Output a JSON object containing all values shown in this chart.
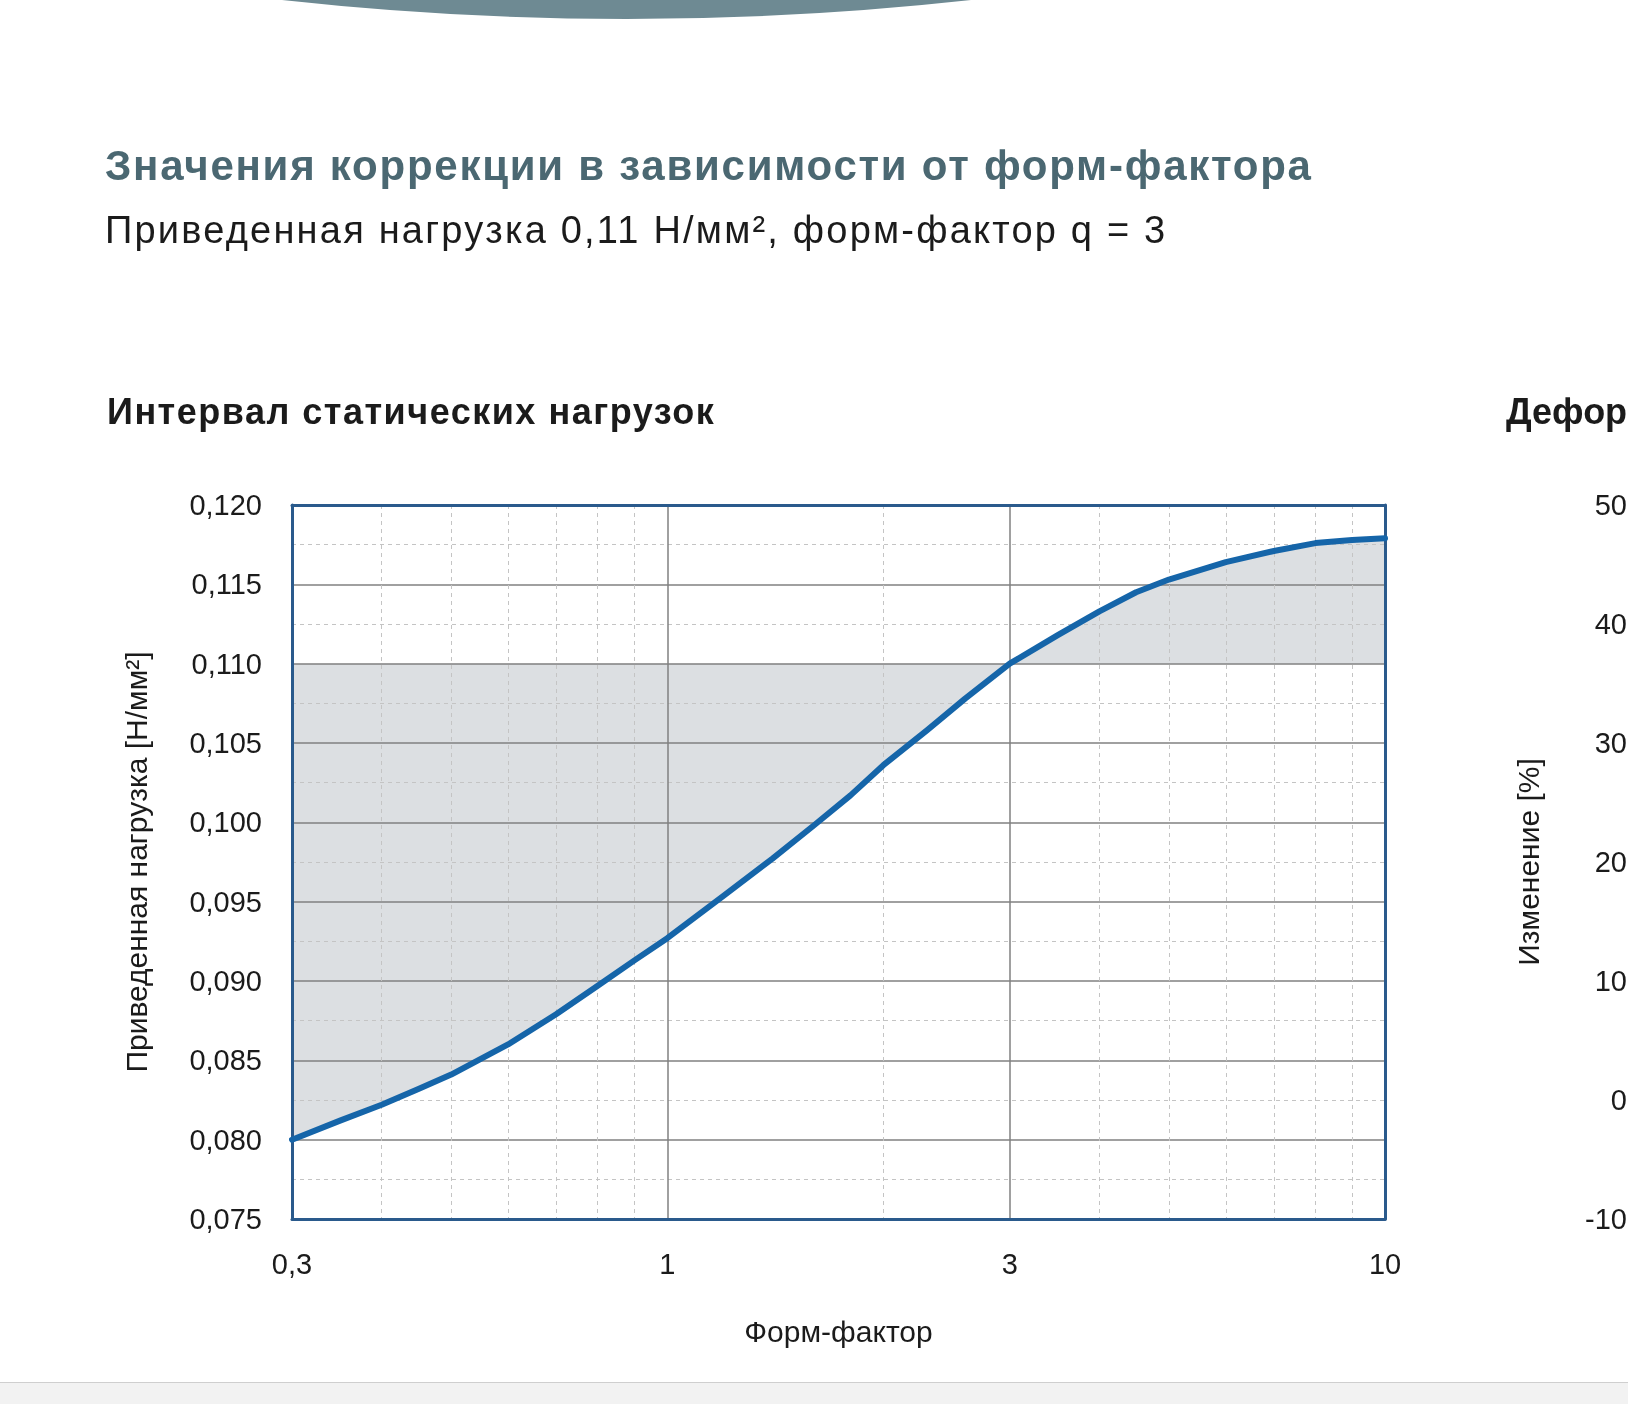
{
  "chart_data": {
    "type": "line",
    "title": "Интервал статических нагрузок",
    "annotations": [
      "Значения коррекции в зависимости от форм-фактора",
      "Приведенная нагрузка 0,11 Н/мм², форм-фактор q = 3",
      "Дефор",
      "Изменение [%]",
      "50",
      "40",
      "30",
      "20",
      "10",
      "0",
      "-10"
    ],
    "xlabel": "Форм-фактор",
    "ylabel": "Приведенная нагрузка [Н/мм²]",
    "log": "x",
    "grid": true,
    "marker": "none",
    "line_style": "solid",
    "xlim": [
      0.3,
      10
    ],
    "xticks": [
      {
        "value": 0.3,
        "label": "0,3"
      },
      {
        "value": 0.4,
        "label": null
      },
      {
        "value": 0.5,
        "label": null
      },
      {
        "value": 0.6,
        "label": null
      },
      {
        "value": 0.7,
        "label": null
      },
      {
        "value": 0.8,
        "label": null
      },
      {
        "value": 0.9,
        "label": null
      },
      1,
      {
        "value": 2,
        "label": null
      },
      3,
      {
        "value": 4,
        "label": null
      },
      {
        "value": 5,
        "label": null
      },
      {
        "value": 6,
        "label": null
      },
      {
        "value": 7,
        "label": null
      },
      {
        "value": 8,
        "label": null
      },
      {
        "value": 9,
        "label": null
      },
      10
    ],
    "ylim": [
      0.075,
      0.12
    ],
    "yticks": [
      {
        "value": 0.075,
        "label": "0,075"
      },
      {
        "value": 0.0775,
        "label": null
      },
      {
        "value": 0.08,
        "label": "0,080"
      },
      {
        "value": 0.0825,
        "label": null
      },
      {
        "value": 0.085,
        "label": "0,085"
      },
      {
        "value": 0.0875,
        "label": null
      },
      {
        "value": 0.09,
        "label": "0,090"
      },
      {
        "value": 0.0925,
        "label": null
      },
      {
        "value": 0.095,
        "label": "0,095"
      },
      {
        "value": 0.0975,
        "label": null
      },
      {
        "value": 0.1,
        "label": "0,100"
      },
      {
        "value": 0.1025,
        "label": null
      },
      {
        "value": 0.105,
        "label": "0,105"
      },
      {
        "value": 0.1075,
        "label": null
      },
      {
        "value": 0.11,
        "label": "0,110"
      },
      {
        "value": 0.1125,
        "label": null
      },
      {
        "value": 0.115,
        "label": "0,115"
      },
      {
        "value": 0.1175,
        "label": null
      },
      {
        "value": 0.12,
        "label": "0,120"
      }
    ],
    "x": [
      0.3,
      0.35,
      0.4,
      0.45,
      0.5,
      0.6,
      0.7,
      0.8,
      0.9,
      1,
      1.2,
      1.4,
      1.6,
      1.8,
      2,
      2.3,
      2.6,
      3,
      3.5,
      4,
      4.5,
      5,
      6,
      7,
      8,
      9,
      10
    ],
    "series": [
      {
        "color": "#1565a9",
        "values": [
          0.08,
          0.0812,
          0.0822,
          0.0832,
          0.0841,
          0.086,
          0.0879,
          0.0897,
          0.0913,
          0.0927,
          0.0954,
          0.0977,
          0.0998,
          0.1017,
          0.1036,
          0.1058,
          0.1078,
          0.11,
          0.1118,
          0.1133,
          0.1145,
          0.1153,
          0.1164,
          0.1171,
          0.1176,
          0.1178,
          0.1179
        ],
        "lower": [
          0.08,
          0.0812,
          0.0822,
          0.0832,
          0.0841,
          0.086,
          0.0879,
          0.0897,
          0.0913,
          0.0927,
          0.0954,
          0.0977,
          0.0998,
          0.1017,
          0.1036,
          0.1058,
          0.1078,
          0.11,
          0.11,
          0.11,
          0.11,
          0.11,
          0.11,
          0.11,
          0.11,
          0.11,
          0.11
        ],
        "upper": [
          0.11,
          0.11,
          0.11,
          0.11,
          0.11,
          0.11,
          0.11,
          0.11,
          0.11,
          0.11,
          0.11,
          0.11,
          0.11,
          0.11,
          0.11,
          0.11,
          0.11,
          0.11,
          0.1118,
          0.1133,
          0.1145,
          0.1153,
          0.1164,
          0.1171,
          0.1176,
          0.1178,
          0.1179
        ]
      }
    ]
  }
}
